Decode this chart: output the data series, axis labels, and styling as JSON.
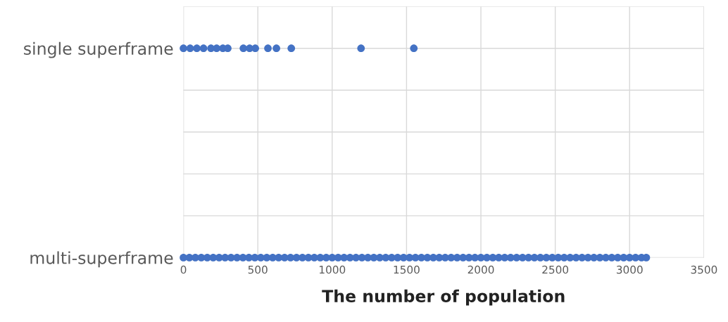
{
  "chart_data": {
    "type": "scatter",
    "orientation": "horizontal",
    "xlabel": "The number of population",
    "xlim": [
      0,
      3500
    ],
    "xticks": [
      0,
      500,
      1000,
      1500,
      2000,
      2500,
      3000,
      3500
    ],
    "categories": [
      null,
      "single superframe",
      null,
      null,
      null,
      null,
      "multi-superframe"
    ],
    "grid": true,
    "marker": "circle",
    "series": [
      {
        "color": "#4472c4",
        "x": [
          "single superframe",
          "single superframe",
          "single superframe",
          "single superframe",
          "single superframe",
          "single superframe",
          "single superframe",
          "single superframe",
          "single superframe",
          "single superframe",
          "single superframe",
          "single superframe",
          "single superframe",
          "single superframe",
          "single superframe",
          "single superframe"
        ],
        "values": [
          0,
          45,
          90,
          135,
          185,
          223,
          265,
          298,
          403,
          445,
          483,
          568,
          625,
          725,
          1194,
          1549
        ]
      },
      {
        "color": "#4472c4",
        "x": [
          "multi-superframe",
          "multi-superframe",
          "multi-superframe",
          "multi-superframe",
          "multi-superframe",
          "multi-superframe",
          "multi-superframe",
          "multi-superframe",
          "multi-superframe",
          "multi-superframe",
          "multi-superframe",
          "multi-superframe",
          "multi-superframe",
          "multi-superframe",
          "multi-superframe",
          "multi-superframe",
          "multi-superframe",
          "multi-superframe",
          "multi-superframe",
          "multi-superframe",
          "multi-superframe",
          "multi-superframe",
          "multi-superframe",
          "multi-superframe",
          "multi-superframe",
          "multi-superframe",
          "multi-superframe",
          "multi-superframe",
          "multi-superframe",
          "multi-superframe",
          "multi-superframe",
          "multi-superframe",
          "multi-superframe",
          "multi-superframe",
          "multi-superframe",
          "multi-superframe",
          "multi-superframe",
          "multi-superframe",
          "multi-superframe",
          "multi-superframe",
          "multi-superframe",
          "multi-superframe",
          "multi-superframe",
          "multi-superframe",
          "multi-superframe",
          "multi-superframe",
          "multi-superframe",
          "multi-superframe",
          "multi-superframe",
          "multi-superframe",
          "multi-superframe",
          "multi-superframe",
          "multi-superframe",
          "multi-superframe",
          "multi-superframe",
          "multi-superframe",
          "multi-superframe",
          "multi-superframe",
          "multi-superframe",
          "multi-superframe",
          "multi-superframe",
          "multi-superframe",
          "multi-superframe",
          "multi-superframe",
          "multi-superframe",
          "multi-superframe",
          "multi-superframe",
          "multi-superframe",
          "multi-superframe",
          "multi-superframe",
          "multi-superframe",
          "multi-superframe",
          "multi-superframe",
          "multi-superframe",
          "multi-superframe",
          "multi-superframe",
          "multi-superframe",
          "multi-superframe",
          "multi-superframe"
        ],
        "values": [
          0,
          40,
          80,
          120,
          160,
          200,
          240,
          280,
          320,
          360,
          400,
          440,
          480,
          520,
          560,
          600,
          640,
          680,
          720,
          760,
          800,
          840,
          880,
          920,
          960,
          1000,
          1040,
          1080,
          1120,
          1160,
          1200,
          1240,
          1280,
          1320,
          1360,
          1400,
          1440,
          1480,
          1520,
          1560,
          1600,
          1640,
          1680,
          1720,
          1760,
          1800,
          1840,
          1880,
          1920,
          1960,
          2000,
          2040,
          2080,
          2120,
          2160,
          2200,
          2240,
          2280,
          2320,
          2360,
          2400,
          2440,
          2480,
          2520,
          2560,
          2600,
          2640,
          2680,
          2720,
          2760,
          2800,
          2840,
          2880,
          2920,
          2960,
          3000,
          3040,
          3080,
          3112
        ]
      }
    ]
  }
}
